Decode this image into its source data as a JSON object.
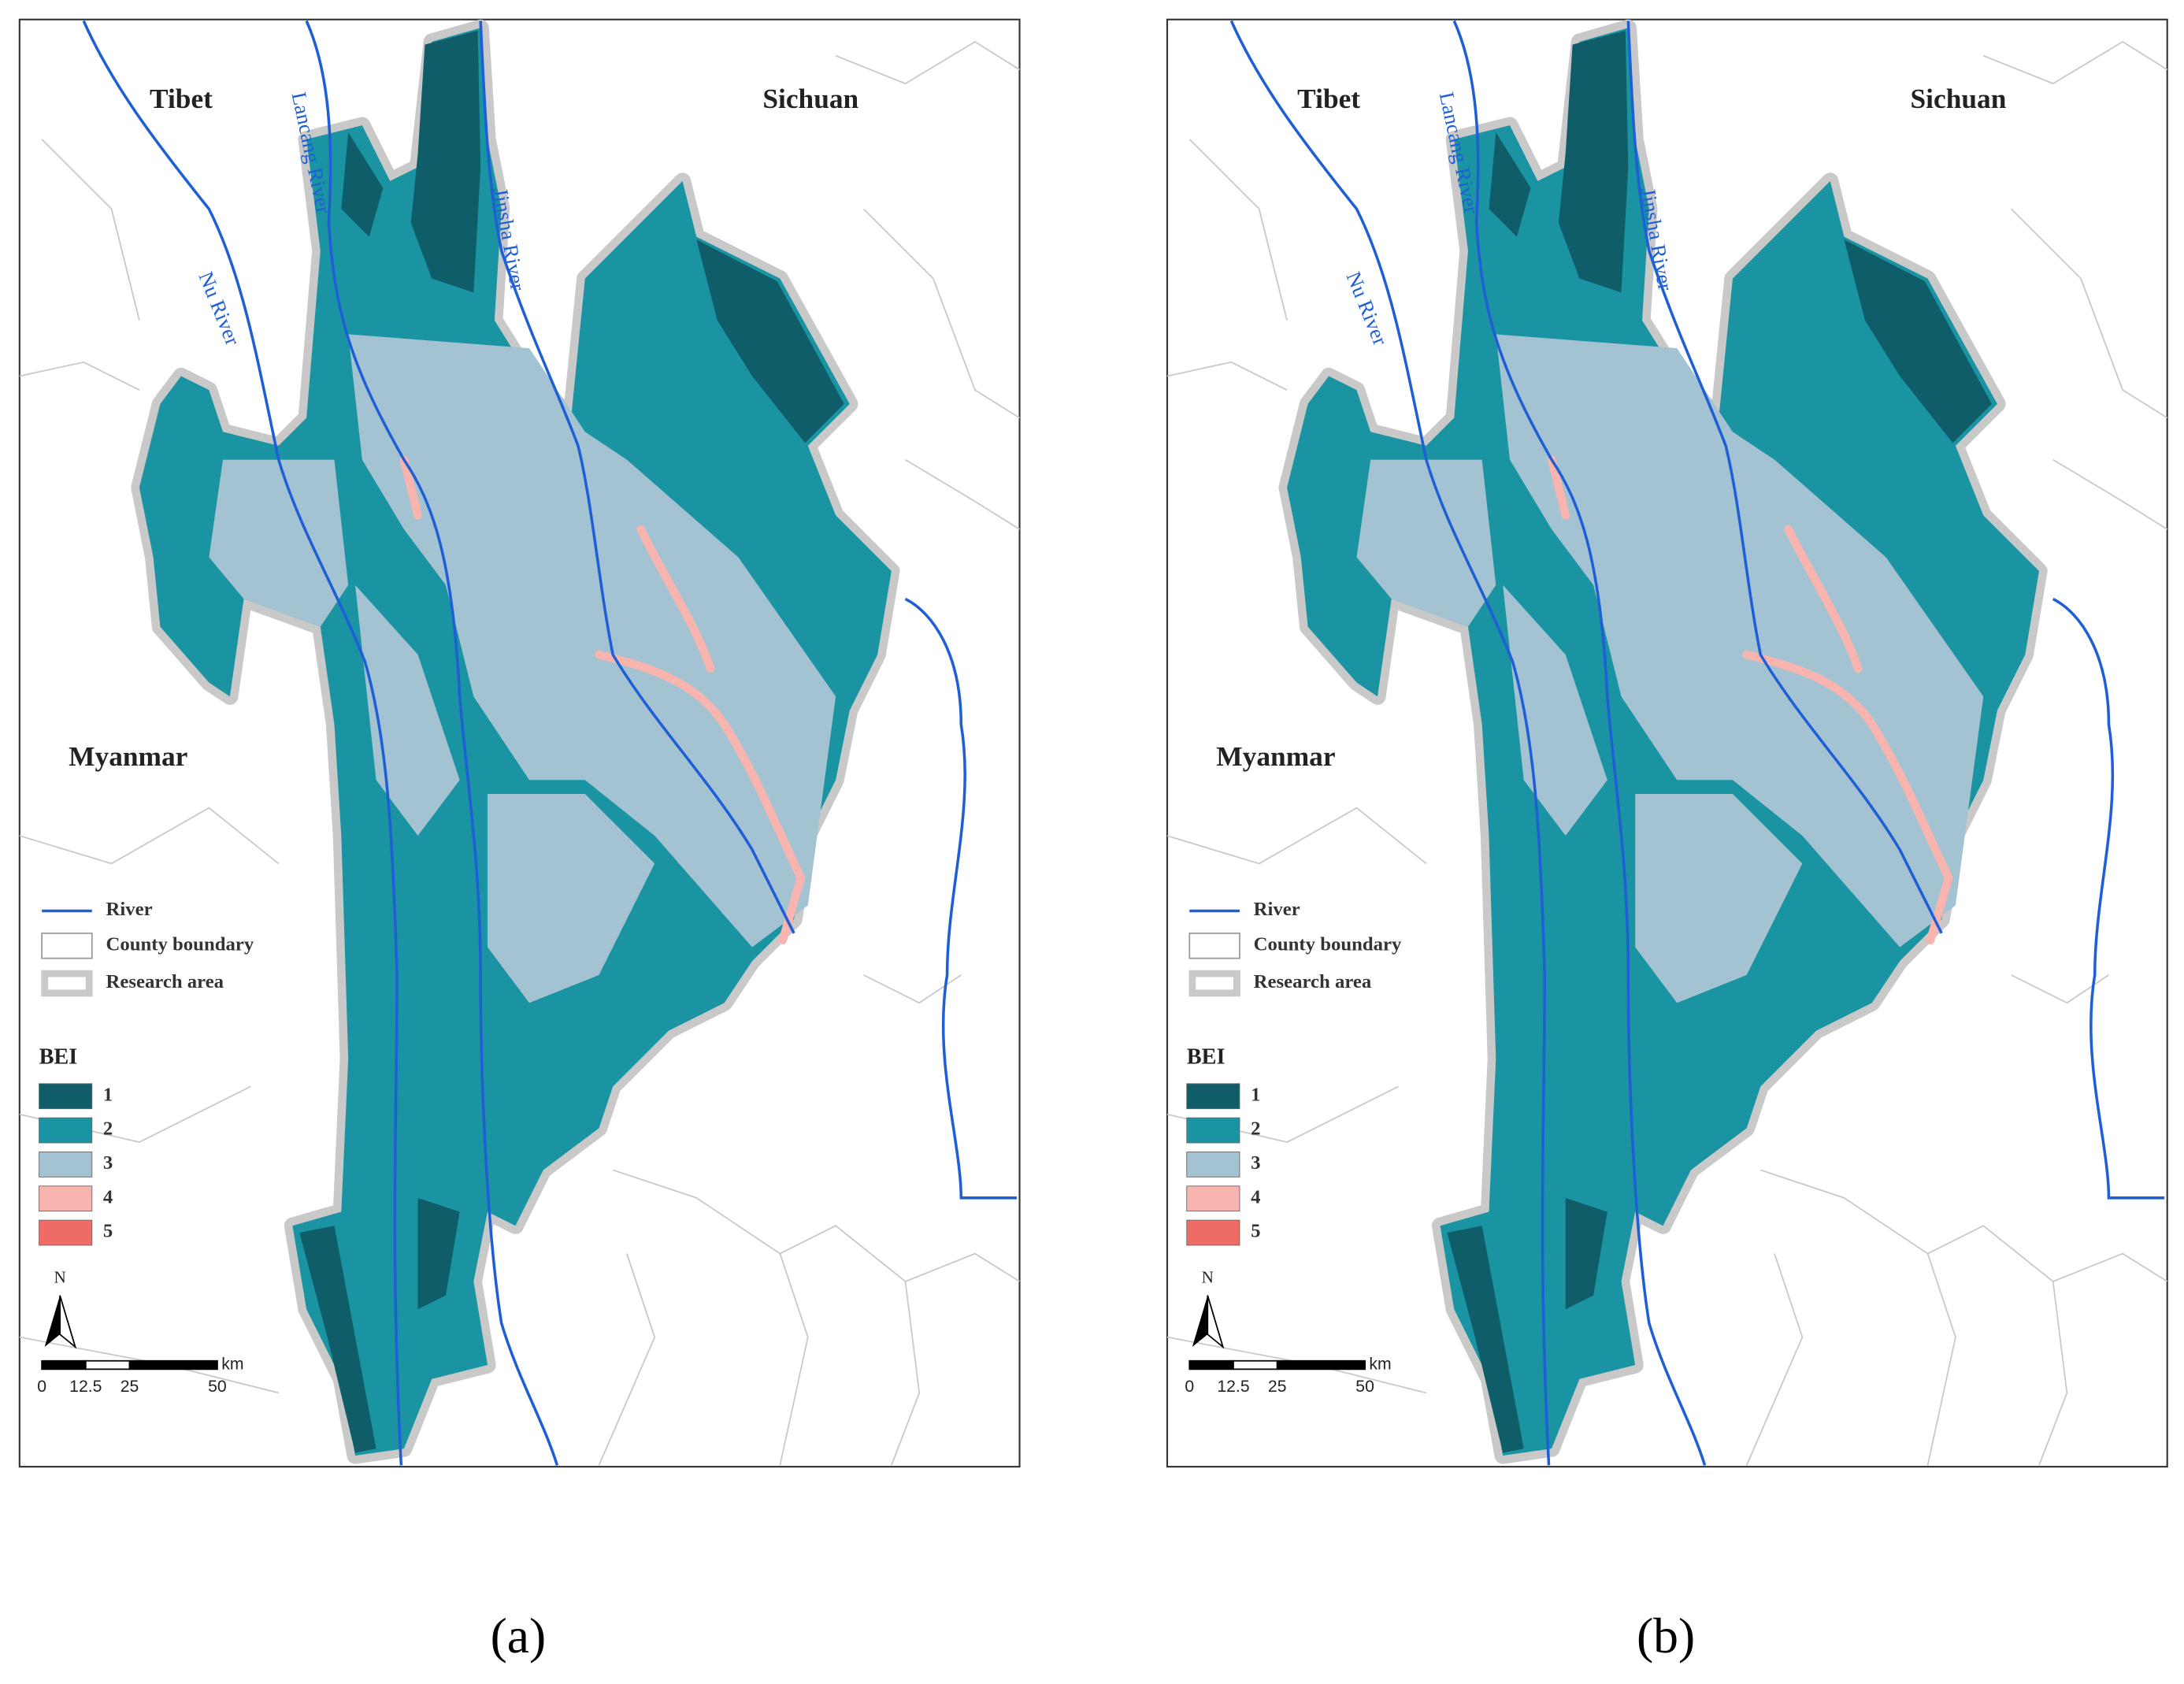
{
  "panels": [
    {
      "caption": "(a)",
      "regions": [
        "Tibet",
        "Sichuan",
        "Myanmar"
      ],
      "rivers": [
        "Lancang River",
        "Nu River",
        "Jinsha River"
      ],
      "legend": {
        "items": [
          "River",
          "County boundary",
          "Research area"
        ],
        "bei_title": "BEI",
        "bei_classes": [
          {
            "label": 1,
            "color": "#0f5d68"
          },
          {
            "label": 2,
            "color": "#1a93a2"
          },
          {
            "label": 3,
            "color": "#a3c3d3"
          },
          {
            "label": 4,
            "color": "#f8b4ae"
          },
          {
            "label": 5,
            "color": "#ef6b66"
          }
        ]
      },
      "north": "N",
      "scale": {
        "ticks": [
          0,
          12.5,
          25,
          50
        ],
        "unit": "km"
      }
    },
    {
      "caption": "(b)",
      "regions": [
        "Tibet",
        "Sichuan",
        "Myanmar"
      ],
      "rivers": [
        "Lancang River",
        "Nu River",
        "Jinsha River"
      ],
      "legend": {
        "items": [
          "River",
          "County boundary",
          "Research area"
        ],
        "bei_title": "BEI",
        "bei_classes": [
          {
            "label": 1,
            "color": "#0f5d68"
          },
          {
            "label": 2,
            "color": "#1a93a2"
          },
          {
            "label": 3,
            "color": "#a3c3d3"
          },
          {
            "label": 4,
            "color": "#f8b4ae"
          },
          {
            "label": 5,
            "color": "#ef6b66"
          }
        ]
      },
      "north": "N",
      "scale": {
        "ticks": [
          0,
          12.5,
          25,
          50
        ],
        "unit": "km"
      }
    }
  ]
}
